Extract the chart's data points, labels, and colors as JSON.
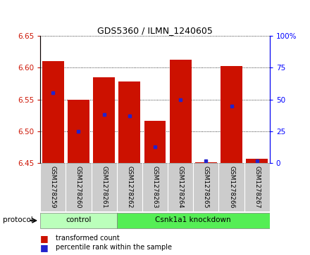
{
  "title": "GDS5360 / ILMN_1240605",
  "samples": [
    "GSM1278259",
    "GSM1278260",
    "GSM1278261",
    "GSM1278262",
    "GSM1278263",
    "GSM1278264",
    "GSM1278265",
    "GSM1278266",
    "GSM1278267"
  ],
  "transformed_count": [
    6.61,
    6.55,
    6.585,
    6.578,
    6.517,
    6.612,
    6.452,
    6.602,
    6.457
  ],
  "percentile_rank": [
    55,
    25,
    38,
    37,
    13,
    50,
    2,
    45,
    2
  ],
  "ylim": [
    6.45,
    6.65
  ],
  "y_ticks": [
    6.45,
    6.5,
    6.55,
    6.6,
    6.65
  ],
  "right_yticks": [
    0,
    25,
    50,
    75,
    100
  ],
  "bar_bottom": 6.45,
  "bar_width": 0.85,
  "red_color": "#cc1100",
  "blue_color": "#2222cc",
  "groups": [
    {
      "label": "control",
      "start": 0,
      "end": 3,
      "color": "#bbffbb"
    },
    {
      "label": "Csnk1a1 knockdown",
      "start": 3,
      "end": 9,
      "color": "#55ee55"
    }
  ],
  "protocol_label": "protocol",
  "bg_color": "#ffffff",
  "label_area_color": "#cccccc",
  "group_color_light": "#bbffbb",
  "group_color_dark": "#55ee55"
}
